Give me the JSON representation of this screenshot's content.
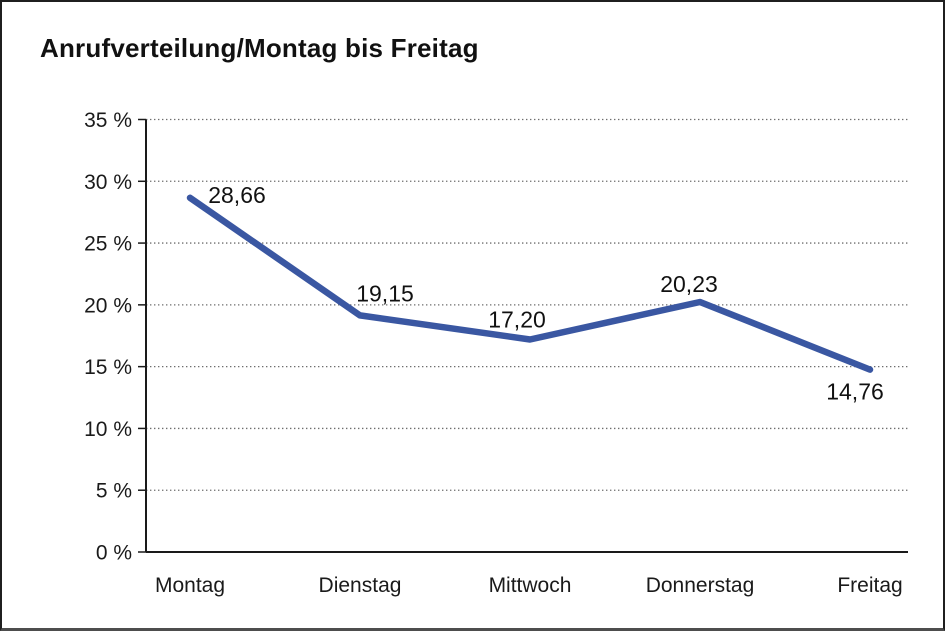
{
  "window": {
    "background": "#ffffff",
    "frame_border_color": "#1f1f1f"
  },
  "title": "Anrufverteilung/Montag bis Freitag",
  "chart_data": {
    "type": "line",
    "title": "Anrufverteilung/Montag bis Freitag",
    "categories": [
      "Montag",
      "Dienstag",
      "Mittwoch",
      "Donnerstag",
      "Freitag"
    ],
    "values": [
      28.66,
      19.15,
      17.2,
      20.23,
      14.76
    ],
    "point_labels": [
      "28,66",
      "19,15",
      "17,20",
      "20,23",
      "14,76"
    ],
    "xlabel": "",
    "ylabel": "",
    "ylim": [
      0,
      35
    ],
    "ytick_step": 5,
    "ytick_labels": [
      "0 %",
      "5 %",
      "10 %",
      "15 %",
      "20 %",
      "25 %",
      "30 %",
      "35 %"
    ],
    "grid": "horizontal-dotted",
    "legend_position": "none",
    "colors": {
      "line": "#3a57a2",
      "axis": "#1a1a1a",
      "gridline": "#6e6e6e",
      "text": "#111111"
    }
  }
}
